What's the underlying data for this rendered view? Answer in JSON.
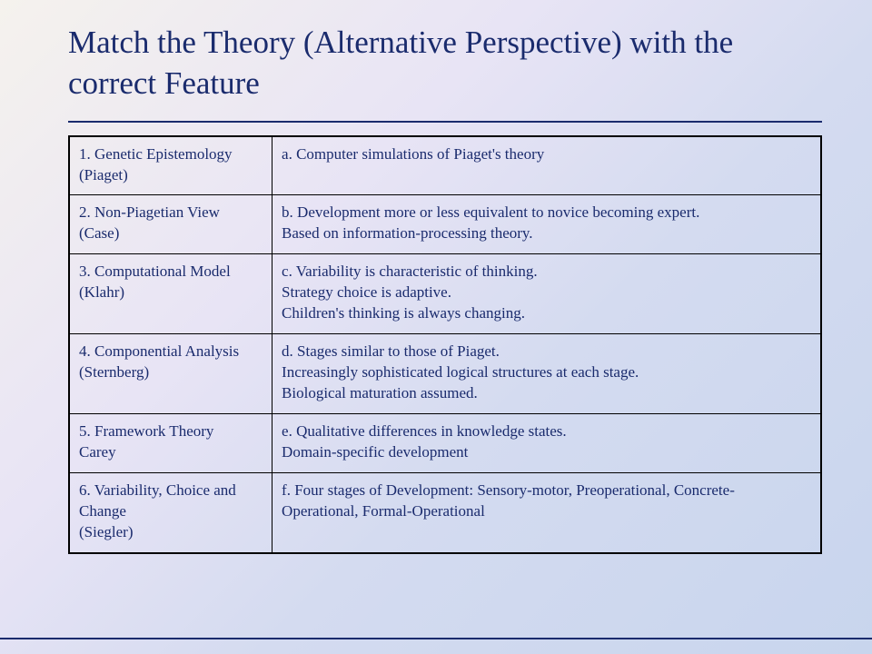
{
  "title": "Match the Theory (Alternative Perspective) with the correct Feature",
  "rows": [
    {
      "left": "1. Genetic Epistemology   (Piaget)",
      "right": "a. Computer simulations of Piaget's theory"
    },
    {
      "left": "2. Non-Piagetian View\n(Case)",
      "right": "b. Development more or less equivalent to novice becoming expert.\nBased on information-processing theory."
    },
    {
      "left": "3. Computational Model\n(Klahr)",
      "right": "c. Variability is characteristic of thinking.\nStrategy choice is adaptive.\nChildren's thinking is always changing."
    },
    {
      "left": "4. Componential Analysis\n(Sternberg)",
      "right": "d. Stages similar to those of Piaget.\nIncreasingly sophisticated logical structures at each stage.\nBiological maturation assumed."
    },
    {
      "left": "5. Framework Theory\nCarey",
      "right": "e. Qualitative differences in knowledge states.\nDomain-specific development"
    },
    {
      "left": "6. Variability, Choice and Change\n(Siegler)",
      "right": "f. Four stages of Development: Sensory-motor, Preoperational, Concrete-Operational, Formal-Operational"
    }
  ]
}
